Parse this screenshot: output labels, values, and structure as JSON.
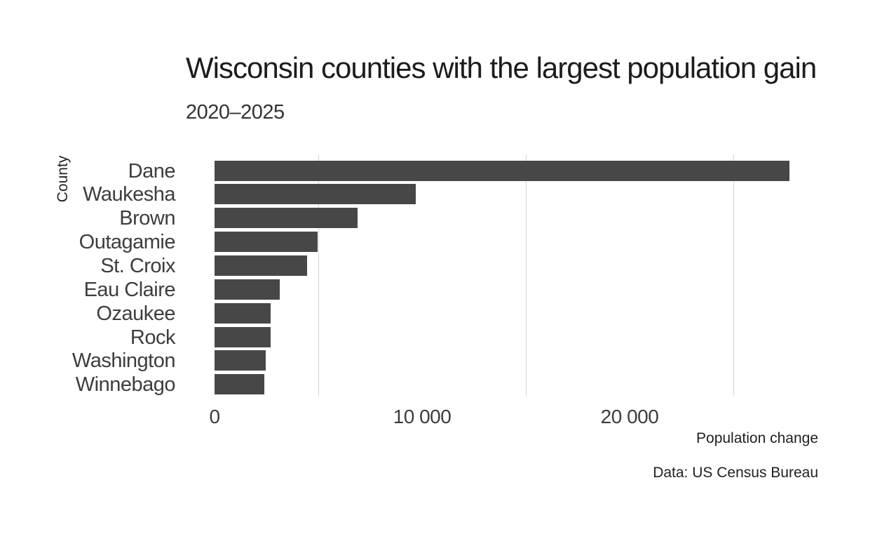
{
  "chart_data": {
    "type": "bar",
    "orientation": "horizontal",
    "title": "Wisconsin counties with the largest population gain",
    "subtitle": "2020–2025",
    "xlabel": "Population change",
    "ylabel": "County",
    "caption": "Data: US Census Bureau",
    "categories": [
      "Dane",
      "Waukesha",
      "Brown",
      "Outagamie",
      "St. Croix",
      "Eau Claire",
      "Ozaukee",
      "Rock",
      "Washington",
      "Winnebago"
    ],
    "values": [
      27700,
      9700,
      6900,
      4950,
      4450,
      3150,
      2700,
      2700,
      2450,
      2400
    ],
    "xlim": [
      0,
      28500
    ],
    "x_ticks": [
      {
        "value": 0,
        "label": "0"
      },
      {
        "value": 10000,
        "label": "10 000"
      },
      {
        "value": 20000,
        "label": "20 000"
      }
    ],
    "minor_gridlines": [
      5000,
      15000,
      25000
    ],
    "grid": "vertical-only",
    "legend": "none",
    "bar_color": "#474747",
    "gridline_color": "#d5d5d5",
    "text_color": "#3d3d3d",
    "background": "#ffffff"
  }
}
